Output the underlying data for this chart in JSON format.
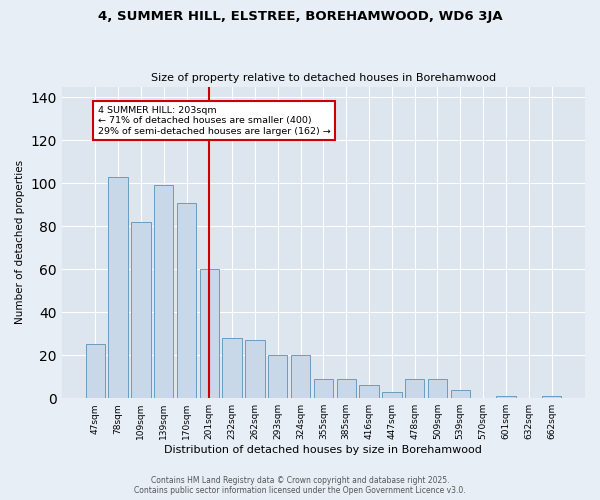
{
  "title1": "4, SUMMER HILL, ELSTREE, BOREHAMWOOD, WD6 3JA",
  "title2": "Size of property relative to detached houses in Borehamwood",
  "xlabel": "Distribution of detached houses by size in Borehamwood",
  "ylabel": "Number of detached properties",
  "categories": [
    "47sqm",
    "78sqm",
    "109sqm",
    "139sqm",
    "170sqm",
    "201sqm",
    "232sqm",
    "262sqm",
    "293sqm",
    "324sqm",
    "355sqm",
    "385sqm",
    "416sqm",
    "447sqm",
    "478sqm",
    "509sqm",
    "539sqm",
    "570sqm",
    "601sqm",
    "632sqm",
    "662sqm"
  ],
  "values": [
    25,
    103,
    82,
    99,
    91,
    60,
    28,
    27,
    20,
    20,
    9,
    9,
    6,
    3,
    9,
    9,
    4,
    0,
    1,
    0,
    1
  ],
  "bar_color": "#c8d8e8",
  "bar_edge_color": "#6a9cc0",
  "vline_index": 5,
  "vline_color": "#cc0000",
  "annotation_title": "4 SUMMER HILL: 203sqm",
  "annotation_line1": "← 71% of detached houses are smaller (400)",
  "annotation_line2": "29% of semi-detached houses are larger (162) →",
  "annotation_box_color": "#cc0000",
  "ylim": [
    0,
    145
  ],
  "yticks": [
    0,
    20,
    40,
    60,
    80,
    100,
    120,
    140
  ],
  "footer1": "Contains HM Land Registry data © Crown copyright and database right 2025.",
  "footer2": "Contains public sector information licensed under the Open Government Licence v3.0.",
  "bg_color": "#e8eef5",
  "plot_bg_color": "#dde6ef"
}
